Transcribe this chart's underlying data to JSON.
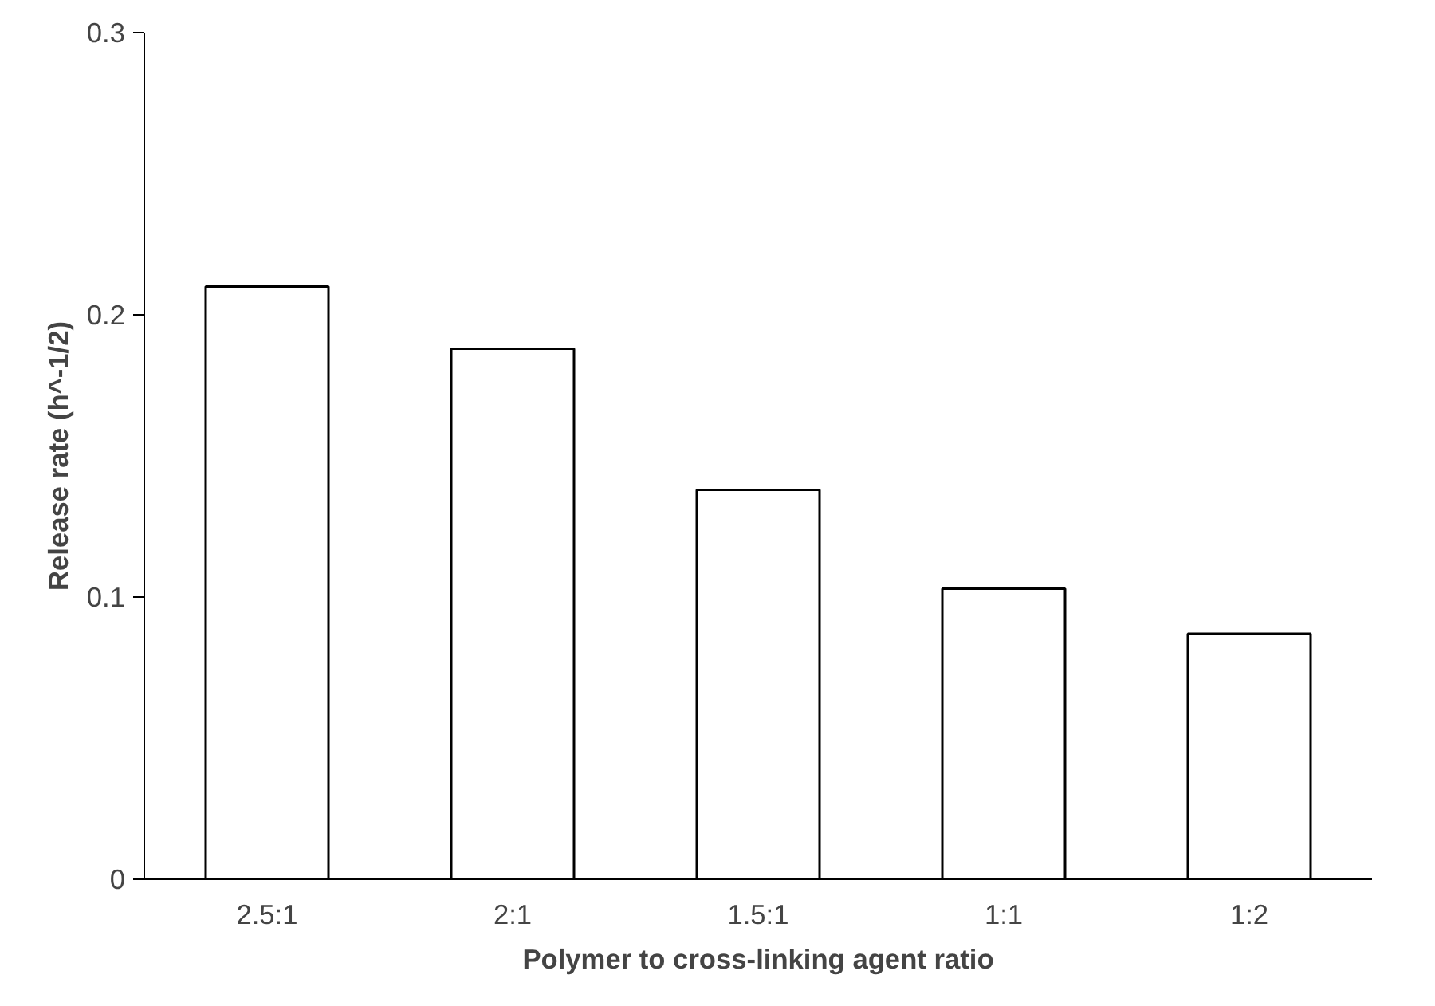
{
  "chart_data": {
    "type": "bar",
    "xlabel": "Polymer to cross-linking agent ratio",
    "ylabel": "Release rate (h^-1/2)",
    "categories": [
      "2.5:1",
      "2:1",
      "1.5:1",
      "1:1",
      "1:2"
    ],
    "values": [
      0.21,
      0.188,
      0.138,
      0.103,
      0.087
    ],
    "color": "#ffffff",
    "ylim": [
      0,
      0.3
    ],
    "yticks": [
      0,
      0.1,
      0.2,
      0.3
    ],
    "grid": false
  }
}
